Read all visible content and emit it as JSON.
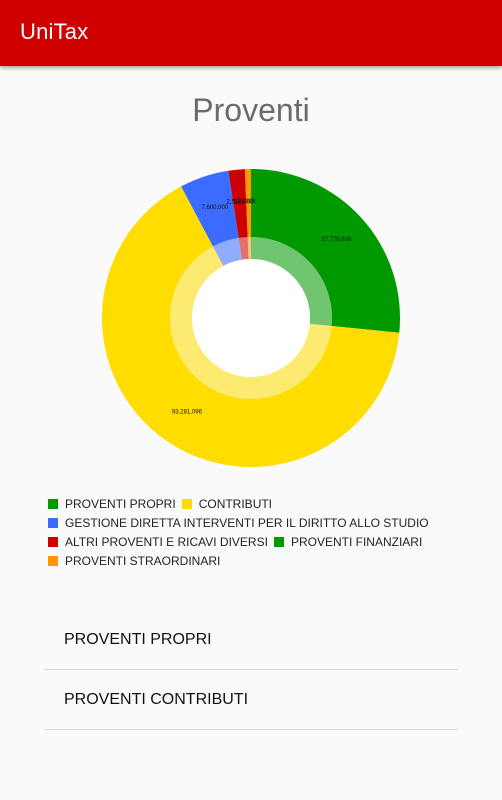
{
  "app": {
    "title": "UniTax"
  },
  "page": {
    "title": "Proventi"
  },
  "legend": [
    {
      "label": "PROVENTI PROPRI",
      "color": "#009900"
    },
    {
      "label": "CONTRIBUTI",
      "color": "#ffdd00"
    },
    {
      "label": "GESTIONE DIRETTA INTERVENTI PER IL DIRITTO ALLO STUDIO",
      "color": "#3b6cff"
    },
    {
      "label": "ALTRI PROVENTI E RICAVI DIVERSI",
      "color": "#cc0000"
    },
    {
      "label": "PROVENTI FINANZIARI",
      "color": "#009900"
    },
    {
      "label": "PROVENTI STRAORDINARI",
      "color": "#ff9900"
    }
  ],
  "chart_data": {
    "type": "pie",
    "donut": true,
    "title": "",
    "categories": [
      "PROVENTI PROPRI",
      "CONTRIBUTI",
      "GESTIONE DIRETTA INTERVENTI PER IL DIRITTO ALLO STUDIO",
      "ALTRI PROVENTI E RICAVI DIVERSI",
      "PROVENTI FINANZIARI",
      "PROVENTI STRAORDINARI"
    ],
    "values": [
      37770656,
      93281096,
      7600000,
      2518000,
      2000,
      923928
    ],
    "data_labels": [
      "37,770,656",
      "93,281,096",
      "7,600,000",
      "2,518,000",
      "",
      "923,928"
    ],
    "colors": [
      "#009900",
      "#ffdd00",
      "#3b6cff",
      "#cc0000",
      "#009900",
      "#ff9900"
    ],
    "legend_position": "bottom-left"
  },
  "list": {
    "items": [
      {
        "label": "PROVENTI PROPRI"
      },
      {
        "label": "PROVENTI CONTRIBUTI"
      }
    ]
  }
}
